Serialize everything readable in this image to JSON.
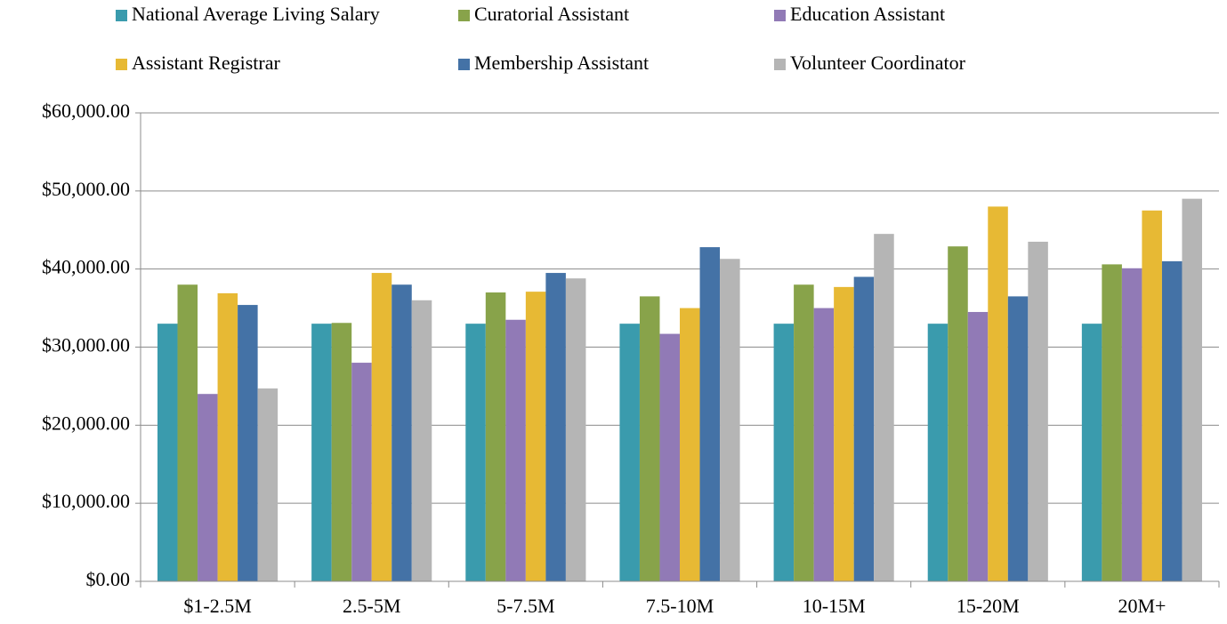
{
  "chart_data": {
    "type": "bar",
    "categories": [
      "$1-2.5M",
      "2.5-5M",
      "5-7.5M",
      "7.5-10M",
      "10-15M",
      "15-20M",
      "20M+"
    ],
    "series": [
      {
        "name": "National Average Living Salary",
        "color": "#3a9bad",
        "values": [
          33000,
          33000,
          33000,
          33000,
          33000,
          33000,
          33000
        ]
      },
      {
        "name": "Curatorial Assistant",
        "color": "#88a34a",
        "values": [
          38000,
          33100,
          37000,
          36500,
          38000,
          42900,
          40600
        ]
      },
      {
        "name": "Education Assistant",
        "color": "#917ab6",
        "values": [
          24000,
          28000,
          33500,
          31700,
          35000,
          34500,
          40100
        ]
      },
      {
        "name": "Assistant Registrar",
        "color": "#e7b934",
        "values": [
          36900,
          39500,
          37100,
          35000,
          37700,
          48000,
          47500
        ]
      },
      {
        "name": "Membership Assistant",
        "color": "#4472a6",
        "values": [
          35400,
          38000,
          39500,
          42800,
          39000,
          36500,
          41000
        ]
      },
      {
        "name": "Volunteer Coordinator",
        "color": "#b5b5b5",
        "values": [
          24700,
          36000,
          38800,
          41300,
          44500,
          43500,
          49000
        ]
      }
    ],
    "ylim": [
      0,
      60000
    ],
    "yticks": [
      {
        "value": 0,
        "label": "$0.00"
      },
      {
        "value": 10000,
        "label": "$10,000.00"
      },
      {
        "value": 20000,
        "label": "$20,000.00"
      },
      {
        "value": 30000,
        "label": "$30,000.00"
      },
      {
        "value": 40000,
        "label": "$40,000.00"
      },
      {
        "value": 50000,
        "label": "$50,000.00"
      },
      {
        "value": 60000,
        "label": "$60,000.00"
      }
    ],
    "grid": true
  }
}
